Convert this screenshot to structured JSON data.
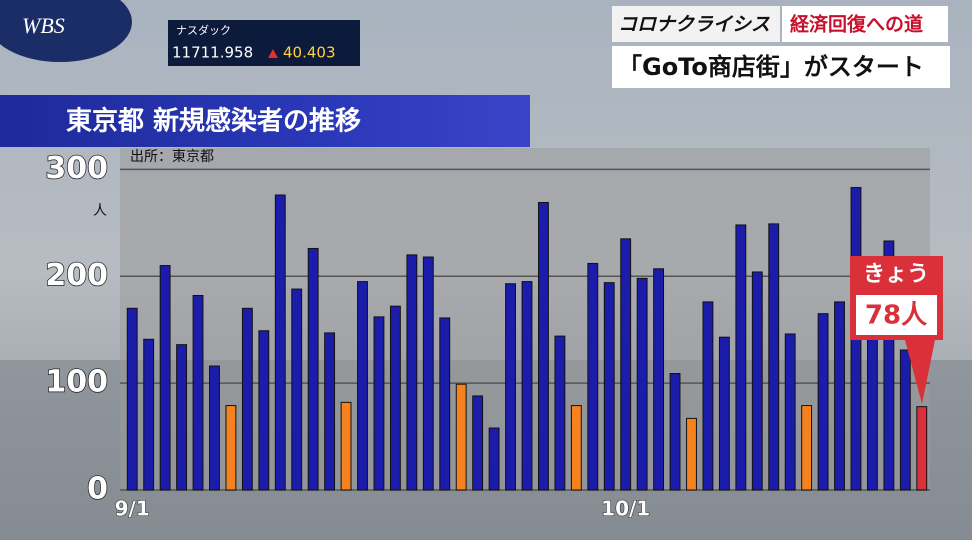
{
  "header": {
    "logo": "WBS",
    "market_name": "ナスダック",
    "market_value": "11711.958",
    "market_change": "40.403",
    "series_title": "コロナクライシス",
    "series_subtitle": "経済回復への道",
    "headline": "「GoTo商店街」がスタート"
  },
  "chart_data": {
    "type": "bar",
    "title": "東京都 新規感染者の推移",
    "source": "出所：東京都",
    "y_unit": "人",
    "categories": [
      "9/1",
      null,
      null,
      null,
      null,
      null,
      null,
      null,
      null,
      null,
      null,
      null,
      null,
      null,
      null,
      null,
      null,
      null,
      null,
      null,
      null,
      null,
      null,
      null,
      null,
      null,
      null,
      null,
      null,
      null,
      "10/1",
      null,
      null,
      null,
      null,
      null,
      null,
      null,
      null,
      null,
      null,
      null,
      null,
      null,
      null,
      null,
      null,
      null,
      null
    ],
    "values": [
      170,
      141,
      210,
      136,
      182,
      116,
      79,
      170,
      149,
      276,
      188,
      226,
      147,
      82,
      195,
      162,
      172,
      220,
      218,
      161,
      99,
      88,
      58,
      193,
      195,
      269,
      144,
      79,
      212,
      194,
      235,
      198,
      207,
      109,
      67,
      176,
      143,
      248,
      204,
      249,
      146,
      79,
      165,
      176,
      283,
      186,
      233,
      131,
      78
    ],
    "colors": [
      "#1c1caa",
      "#1c1caa",
      "#1c1caa",
      "#1c1caa",
      "#1c1caa",
      "#1c1caa",
      "#f5821f",
      "#1c1caa",
      "#1c1caa",
      "#1c1caa",
      "#1c1caa",
      "#1c1caa",
      "#1c1caa",
      "#f5821f",
      "#1c1caa",
      "#1c1caa",
      "#1c1caa",
      "#1c1caa",
      "#1c1caa",
      "#1c1caa",
      "#f5821f",
      "#1c1caa",
      "#1c1caa",
      "#1c1caa",
      "#1c1caa",
      "#1c1caa",
      "#1c1caa",
      "#f5821f",
      "#1c1caa",
      "#1c1caa",
      "#1c1caa",
      "#1c1caa",
      "#1c1caa",
      "#1c1caa",
      "#f5821f",
      "#1c1caa",
      "#1c1caa",
      "#1c1caa",
      "#1c1caa",
      "#1c1caa",
      "#1c1caa",
      "#f5821f",
      "#1c1caa",
      "#1c1caa",
      "#1c1caa",
      "#1c1caa",
      "#1c1caa",
      "#1c1caa",
      "#d9303a"
    ],
    "ylim": [
      0,
      320
    ],
    "yticks": [
      0,
      100,
      200,
      300
    ],
    "grid": true,
    "annotation": {
      "label": "きょう",
      "value_label": "78人"
    }
  }
}
